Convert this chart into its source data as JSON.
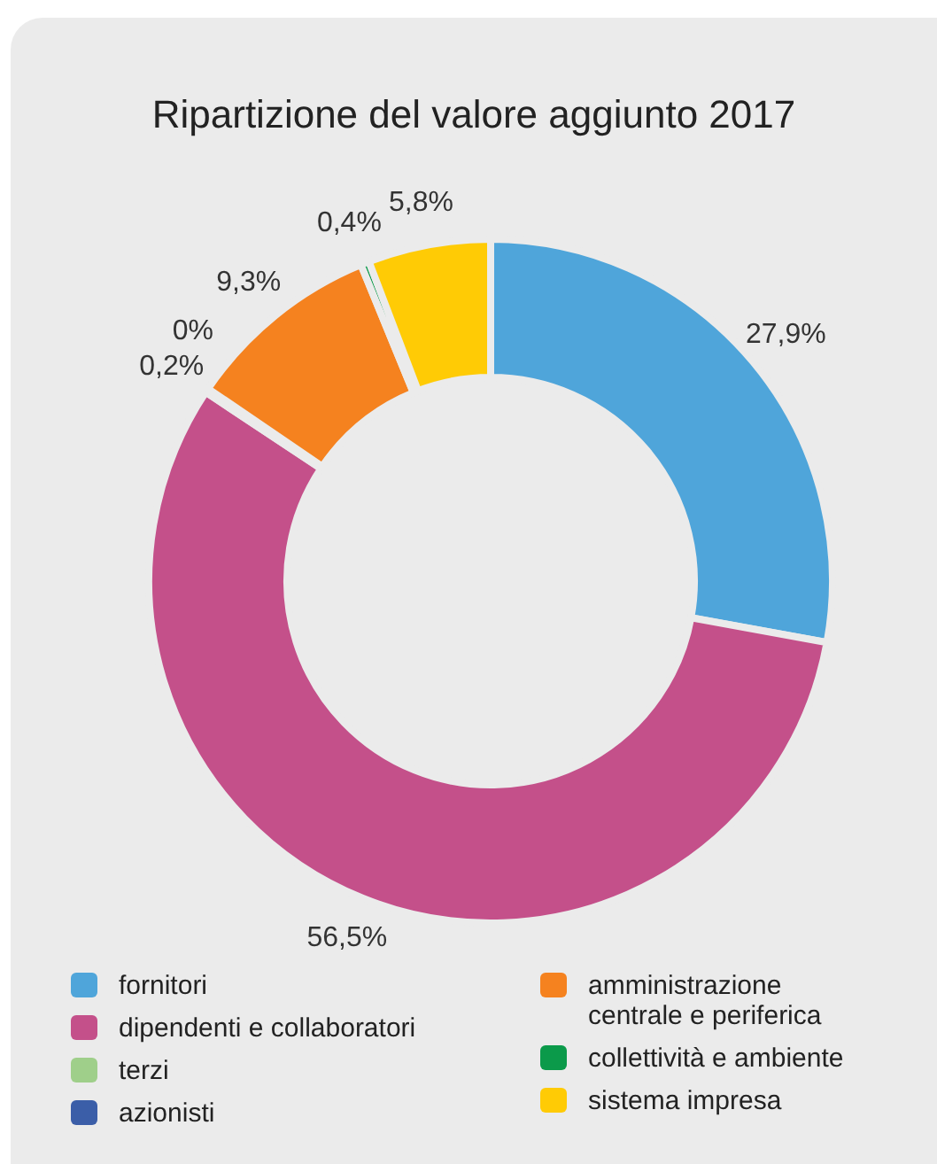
{
  "chart_data": {
    "type": "donut",
    "title": "Ripartizione del valore aggiunto 2017",
    "categories": [
      "fornitori",
      "dipendenti e collaboratori",
      "terzi",
      "azionisti",
      "amministrazione centrale e periferica",
      "collettività e ambiente",
      "sistema impresa"
    ],
    "values": [
      27.9,
      56.5,
      0.2,
      0,
      9.3,
      0.4,
      5.8
    ],
    "colors": [
      "#4fa5da",
      "#c4508a",
      "#9fcf8a",
      "#3b5ea8",
      "#f5821f",
      "#0b9a4a",
      "#ffcb05"
    ],
    "value_labels": [
      "27,9%",
      "56,5%",
      "0,2%",
      "0%",
      "9,3%",
      "0,4%",
      "5,8%"
    ],
    "legend": "bottom"
  }
}
